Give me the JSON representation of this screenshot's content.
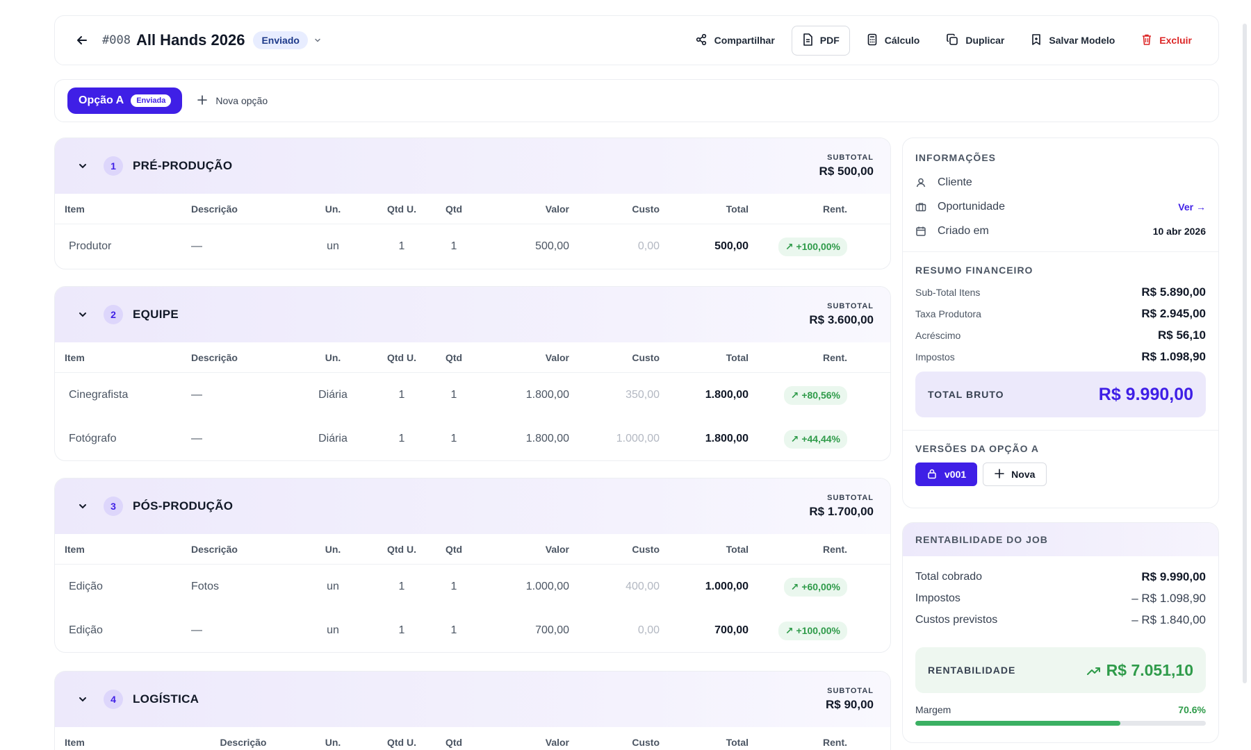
{
  "header": {
    "job_number": "#008",
    "title": "All Hands 2026",
    "status": "Enviado",
    "actions": {
      "share": "Compartilhar",
      "pdf": "PDF",
      "calc": "Cálculo",
      "duplicate": "Duplicar",
      "save_template": "Salvar Modelo",
      "delete": "Excluir"
    }
  },
  "options": {
    "active_label": "Opção A",
    "active_badge": "Enviada",
    "new_option": "Nova opção"
  },
  "columns": {
    "item": "Item",
    "desc": "Descrição",
    "un": "Un.",
    "qtd_u": "Qtd U.",
    "qtd": "Qtd",
    "valor": "Valor",
    "custo": "Custo",
    "total": "Total",
    "rent": "Rent."
  },
  "sections": [
    {
      "num": "1",
      "title": "PRÉ-PRODUÇÃO",
      "subtotal_label": "SUBTOTAL",
      "subtotal": "R$ 500,00",
      "rows": [
        {
          "item": "Produtor",
          "desc": "—",
          "un": "un",
          "qtd_u": "1",
          "qtd": "1",
          "valor": "500,00",
          "custo": "0,00",
          "total": "500,00",
          "rent": "+100,00%"
        }
      ]
    },
    {
      "num": "2",
      "title": "EQUIPE",
      "subtotal_label": "SUBTOTAL",
      "subtotal": "R$ 3.600,00",
      "rows": [
        {
          "item": "Cinegrafista",
          "desc": "—",
          "un": "Diária",
          "qtd_u": "1",
          "qtd": "1",
          "valor": "1.800,00",
          "custo": "350,00",
          "total": "1.800,00",
          "rent": "+80,56%"
        },
        {
          "item": "Fotógrafo",
          "desc": "—",
          "un": "Diária",
          "qtd_u": "1",
          "qtd": "1",
          "valor": "1.800,00",
          "custo": "1.000,00",
          "total": "1.800,00",
          "rent": "+44,44%"
        }
      ]
    },
    {
      "num": "3",
      "title": "PÓS-PRODUÇÃO",
      "subtotal_label": "SUBTOTAL",
      "subtotal": "R$ 1.700,00",
      "rows": [
        {
          "item": "Edição",
          "desc": "Fotos",
          "un": "un",
          "qtd_u": "1",
          "qtd": "1",
          "valor": "1.000,00",
          "custo": "400,00",
          "total": "1.000,00",
          "rent": "+60,00%"
        },
        {
          "item": "Edição",
          "desc": "—",
          "un": "un",
          "qtd_u": "1",
          "qtd": "1",
          "valor": "700,00",
          "custo": "0,00",
          "total": "700,00",
          "rent": "+100,00%"
        }
      ]
    },
    {
      "num": "4",
      "title": "LOGÍSTICA",
      "subtotal_label": "SUBTOTAL",
      "subtotal": "R$ 90,00",
      "rows": []
    }
  ],
  "info": {
    "title": "INFORMAÇÕES",
    "client_label": "Cliente",
    "opportunity_label": "Oportunidade",
    "opportunity_link": "Ver →",
    "created_label": "Criado em",
    "created_value": "10 abr 2026"
  },
  "financial": {
    "title": "RESUMO FINANCEIRO",
    "rows": [
      {
        "label": "Sub-Total Itens",
        "value": "R$ 5.890,00"
      },
      {
        "label": "Taxa Produtora",
        "value": "R$ 2.945,00"
      },
      {
        "label": "Acréscimo",
        "value": "R$ 56,10"
      },
      {
        "label": "Impostos",
        "value": "R$ 1.098,90"
      }
    ],
    "total_label": "TOTAL BRUTO",
    "total_value": "R$ 9.990,00"
  },
  "versions": {
    "title": "VERSÕES DA OPÇÃO A",
    "active": "v001",
    "new": "Nova"
  },
  "job_profit": {
    "title": "RENTABILIDADE DO JOB",
    "rows": [
      {
        "label": "Total cobrado",
        "value": "R$ 9.990,00"
      },
      {
        "label": "Impostos",
        "value": "– R$ 1.098,90"
      },
      {
        "label": "Custos previstos",
        "value": "– R$ 1.840,00"
      }
    ],
    "profit_label": "RENTABILIDADE",
    "profit_value": "R$ 7.051,10",
    "margin_label": "Margem",
    "margin_value": "70.6%",
    "margin_fraction": 0.706
  },
  "colors": {
    "accent": "#3f1fe6",
    "success": "#2f9b4a",
    "danger": "#dc2626"
  }
}
